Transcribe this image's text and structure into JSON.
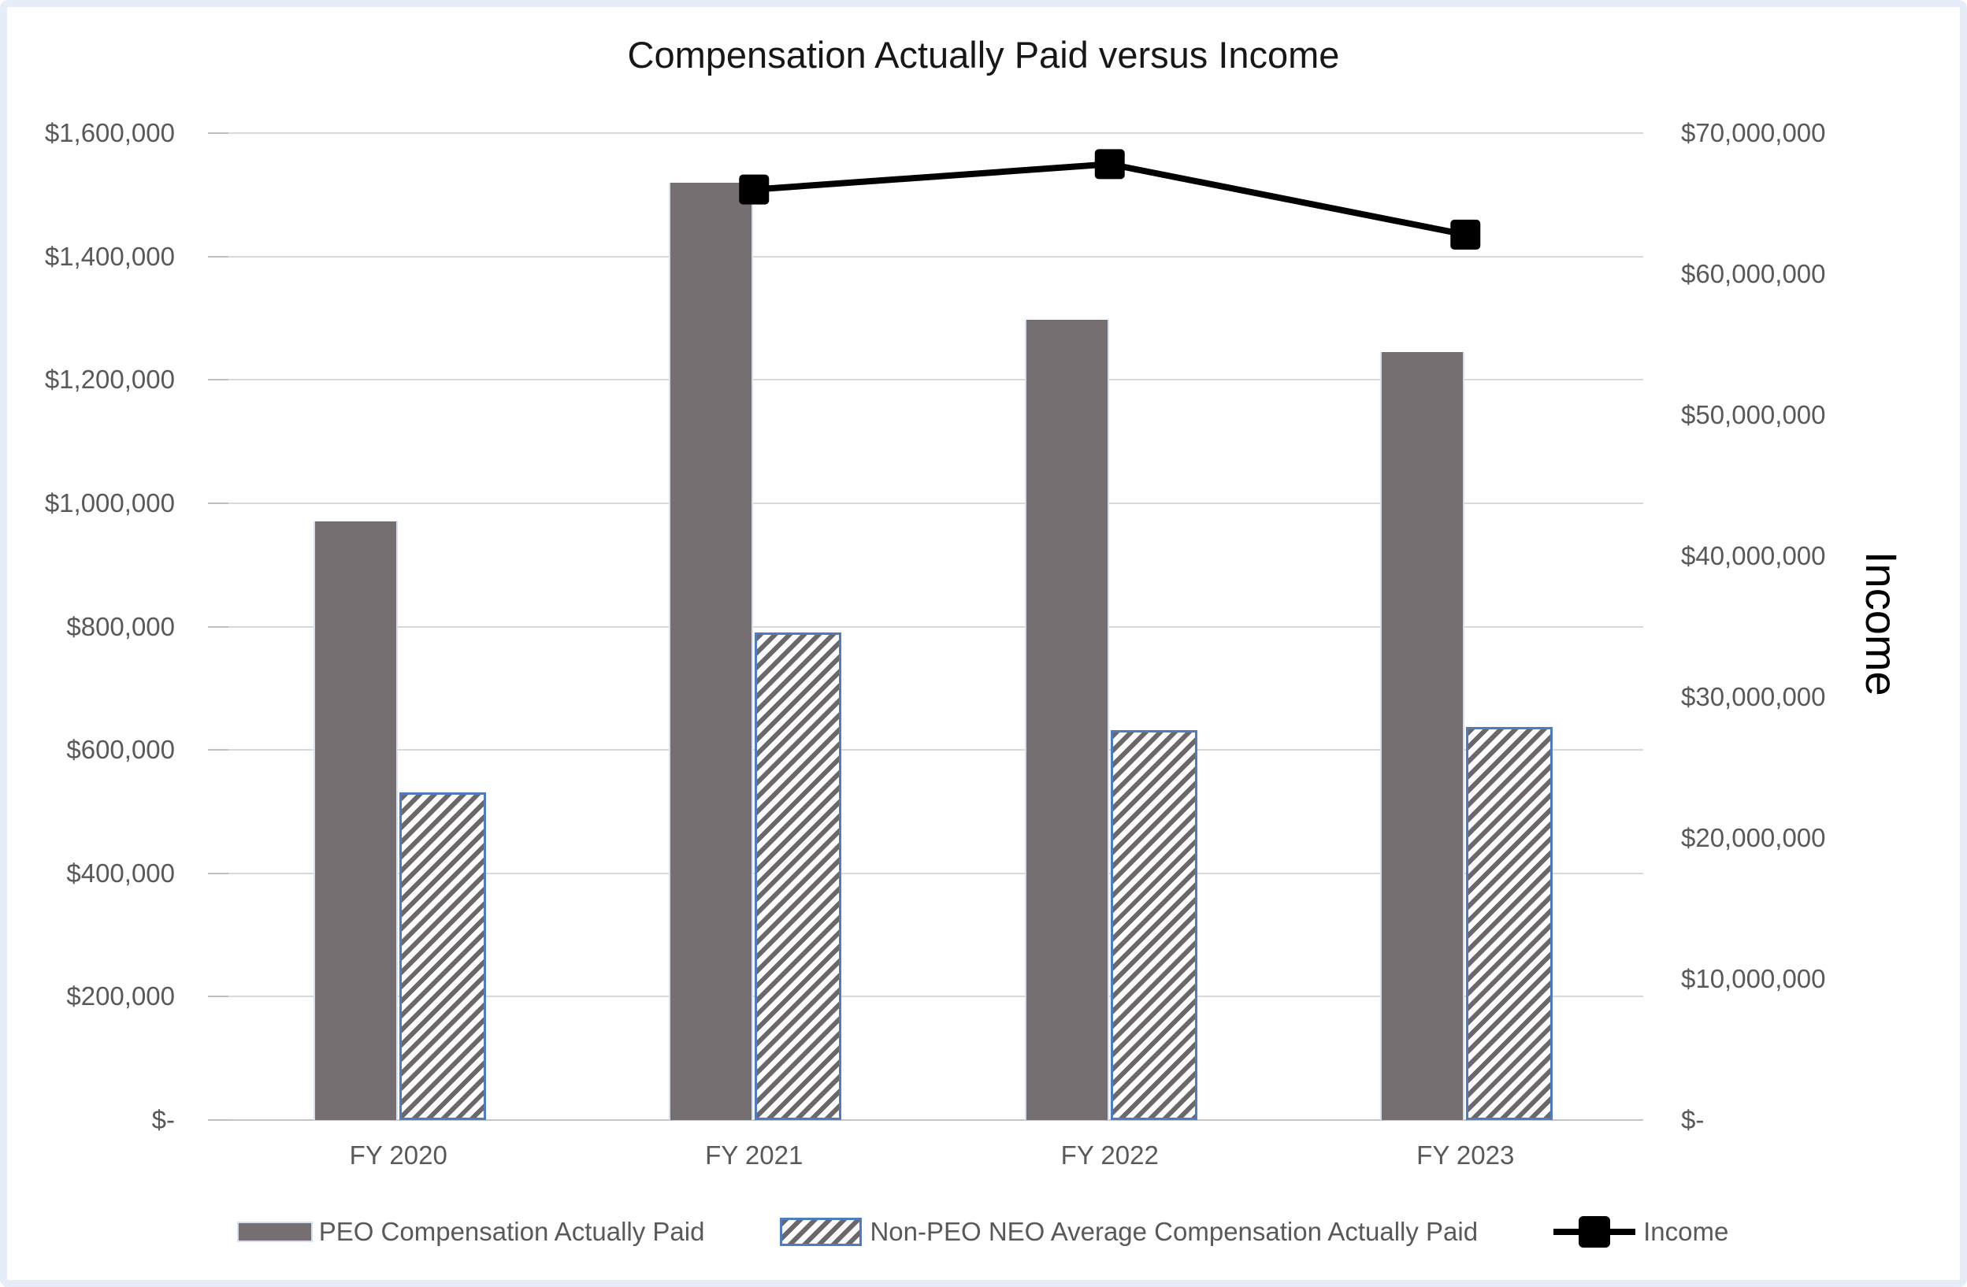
{
  "title": "Compensation Actually Paid versus Income",
  "chart_data": {
    "type": "combo-bar-line",
    "categories": [
      "FY 2020",
      "FY 2021",
      "FY 2022",
      "FY 2023"
    ],
    "series": [
      {
        "name": "PEO Compensation Actually Paid",
        "type": "bar",
        "axis": "left",
        "values": [
          970000,
          1520000,
          1297000,
          1245000
        ]
      },
      {
        "name": "Non-PEO NEO Average Compensation Actually Paid",
        "type": "bar",
        "axis": "left",
        "values": [
          531000,
          790000,
          632000,
          637000
        ]
      },
      {
        "name": "Income",
        "type": "line",
        "axis": "right",
        "values": [
          null,
          66000000,
          67800000,
          62800000
        ]
      }
    ],
    "left_axis": {
      "min": 0,
      "max": 1600000,
      "step": 200000,
      "tick_labels": [
        "$1,600,000",
        "$1,400,000",
        "$1,200,000",
        "$1,000,000",
        "$800,000",
        "$600,000",
        "$400,000",
        "$200,000",
        "$-"
      ]
    },
    "right_axis": {
      "title": "Income",
      "min": 0,
      "max": 70000000,
      "step": 10000000,
      "tick_labels": [
        "$70,000,000",
        "$60,000,000",
        "$50,000,000",
        "$40,000,000",
        "$30,000,000",
        "$20,000,000",
        "$10,000,000",
        "$-"
      ]
    },
    "legend_position": "bottom",
    "grid": true
  },
  "colors": {
    "bar_fill": "#756F71",
    "bar_edge": "#D5DFF0",
    "hatch_stripe": "#6D676A",
    "hatch_border": "#4E7CC0",
    "line": "#000000",
    "gridline": "#D9D9D9",
    "tick_mark": "#BFBFBF",
    "axis_text": "#595959",
    "title_text": "#171717",
    "frame_tint": "#E7EDF8",
    "background": "#FFFFFF"
  }
}
